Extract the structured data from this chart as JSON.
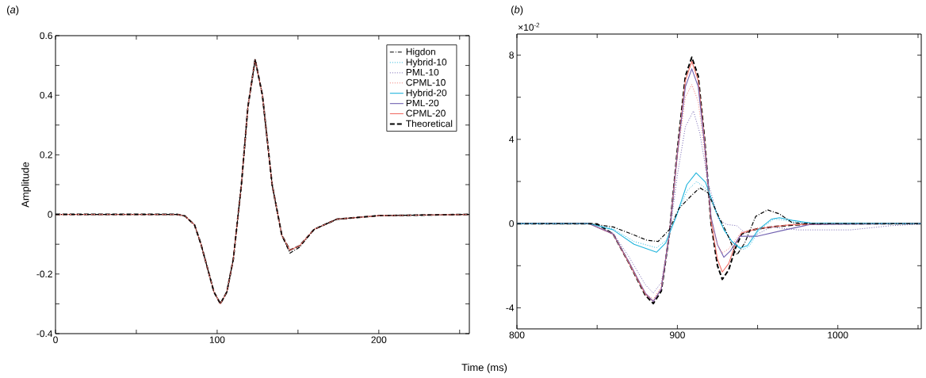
{
  "chart_data": [
    {
      "type": "line",
      "title": "(*a*)",
      "xlabel": "Time (ms)",
      "ylabel": "Amplitude",
      "legend": "top right",
      "xlim": [
        0,
        256
      ],
      "ylim": [
        -0.4,
        0.6
      ],
      "xticks": [
        0,
        {
          "value": 50,
          "label": null
        },
        100,
        {
          "value": 150,
          "label": null
        },
        200,
        {
          "value": 250,
          "label": null
        }
      ],
      "yticks": [
        -0.4,
        {
          "value": -0.3,
          "label": null
        },
        -0.2,
        {
          "value": -0.1,
          "label": null
        },
        0,
        {
          "value": 0.1,
          "label": null
        },
        0.2,
        {
          "value": 0.3,
          "label": null
        },
        0.4,
        {
          "value": 0.5,
          "label": null
        },
        0.6
      ],
      "x": [
        0,
        60,
        75,
        80,
        86,
        90,
        94,
        98,
        102,
        106,
        110,
        115,
        119,
        123.5,
        128,
        134,
        140,
        145,
        151,
        160,
        174,
        200,
        256
      ],
      "series": [
        {
          "name": "Higdon",
          "color": "#000000",
          "line_style": "dashdot",
          "values": [
            0,
            0,
            0,
            -0.005,
            -0.035,
            -0.1,
            -0.18,
            -0.26,
            -0.3,
            -0.26,
            -0.15,
            0.1,
            0.36,
            0.52,
            0.4,
            0.1,
            -0.07,
            -0.13,
            -0.11,
            -0.05,
            -0.016,
            -0.004,
            0
          ]
        },
        {
          "name": "Hybrid-10",
          "color": "#1fb4dc",
          "line_style": "dotted",
          "values": [
            null,
            null,
            null,
            null,
            null,
            null,
            null,
            null,
            null,
            null,
            null,
            null,
            null,
            null,
            null,
            null,
            null,
            null,
            null,
            null,
            null,
            null,
            null
          ]
        },
        {
          "name": "PML-10",
          "color": "#7060b0",
          "line_style": "dotted",
          "values": [
            null,
            null,
            null,
            null,
            null,
            null,
            null,
            null,
            null,
            null,
            null,
            null,
            null,
            null,
            null,
            null,
            null,
            null,
            null,
            null,
            null,
            null,
            null
          ]
        },
        {
          "name": "CPML-10",
          "color": "#f07068",
          "line_style": "dotted",
          "values": [
            null,
            null,
            null,
            null,
            null,
            null,
            null,
            null,
            null,
            null,
            null,
            null,
            null,
            null,
            null,
            null,
            null,
            null,
            null,
            null,
            null,
            null,
            null
          ]
        },
        {
          "name": "Hybrid-20",
          "color": "#1fb4dc",
          "line_style": "solid",
          "values": [
            null,
            null,
            null,
            null,
            null,
            null,
            null,
            null,
            null,
            null,
            null,
            null,
            null,
            null,
            null,
            null,
            null,
            null,
            null,
            null,
            null,
            null,
            null
          ]
        },
        {
          "name": "PML-20",
          "color": "#7060b0",
          "line_style": "solid",
          "values": [
            null,
            null,
            null,
            null,
            null,
            null,
            null,
            null,
            null,
            null,
            null,
            null,
            null,
            null,
            null,
            null,
            null,
            null,
            null,
            null,
            null,
            null,
            null
          ]
        },
        {
          "name": "CPML-20",
          "color": "#f07068",
          "line_style": "solid",
          "values": [
            0,
            0,
            0,
            -0.005,
            -0.035,
            -0.1,
            -0.18,
            -0.26,
            -0.3,
            -0.26,
            -0.15,
            0.1,
            0.36,
            0.52,
            0.4,
            0.1,
            -0.07,
            -0.12,
            -0.105,
            -0.05,
            -0.016,
            -0.004,
            0
          ]
        },
        {
          "name": "Theoretical",
          "color": "#000000",
          "line_style": "dashed",
          "values": [
            0,
            0,
            0,
            -0.005,
            -0.035,
            -0.1,
            -0.18,
            -0.26,
            -0.3,
            -0.26,
            -0.15,
            0.1,
            0.36,
            0.52,
            0.4,
            0.1,
            -0.07,
            -0.12,
            -0.105,
            -0.05,
            -0.016,
            -0.004,
            0
          ]
        }
      ]
    },
    {
      "type": "line",
      "title": "(*b*)",
      "annotations": [
        "×10$^{-2}$"
      ],
      "xlim": [
        800,
        1052
      ],
      "ylim": [
        -5,
        9
      ],
      "xticks": [
        800,
        {
          "value": 850,
          "label": null
        },
        900,
        {
          "value": 950,
          "label": null
        },
        1000,
        {
          "value": 1050,
          "label": null
        }
      ],
      "yticks": [
        -4,
        {
          "value": -2,
          "label": null
        },
        0,
        {
          "value": 2,
          "label": null
        },
        4,
        {
          "value": 6,
          "label": null
        },
        8
      ],
      "series": [
        {
          "color": "#000000",
          "line_style": "dashdot",
          "x": [
            800,
            845,
            860,
            873,
            881,
            888,
            895,
            901,
            909,
            914,
            919,
            925.7,
            930.6,
            935.6,
            937.2,
            942,
            948.8,
            956.2,
            963.6,
            971.8,
            985,
            1052
          ],
          "values": [
            0,
            0,
            -0.16,
            -0.54,
            -0.79,
            -0.85,
            -0.29,
            0.72,
            1.35,
            1.7,
            1.47,
            0.34,
            -0.41,
            -1.3,
            -1.48,
            -0.92,
            0.34,
            0.65,
            0.46,
            0.03,
            0,
            0
          ]
        },
        {
          "color": "#1fb4dc",
          "line_style": "dotted",
          "x": [
            800,
            845,
            860,
            873,
            887,
            893,
            899,
            906,
            912,
            918,
            924,
            929,
            934,
            941.4,
            945,
            951,
            960,
            965,
            972,
            985,
            1052
          ],
          "values": [
            0,
            0,
            -0.25,
            -0.85,
            -1.15,
            -0.8,
            0.3,
            1.55,
            2.0,
            1.65,
            0.55,
            -0.3,
            -0.85,
            -1.23,
            -1.05,
            -0.3,
            0.21,
            0.18,
            0.08,
            0.01,
            0
          ]
        },
        {
          "color": "#7060b0",
          "line_style": "dotted",
          "x": [
            800,
            845,
            860,
            870,
            880,
            885,
            890,
            895,
            900,
            905,
            910,
            914,
            919,
            925.7,
            930.6,
            937,
            945.5,
            958.6,
            975,
            1008,
            1033,
            1052
          ],
          "values": [
            0,
            0,
            -0.45,
            -1.6,
            -2.9,
            -3.3,
            -2.8,
            -0.6,
            2.3,
            4.6,
            5.35,
            4.3,
            2.0,
            0.2,
            -0.04,
            -0.1,
            -0.67,
            -0.16,
            -0.3,
            -0.3,
            -0.1,
            -0.02
          ]
        },
        {
          "color": "#f07068",
          "line_style": "dotted",
          "x": [
            800,
            845,
            860,
            870,
            880,
            885,
            890,
            895,
            900,
            905,
            909,
            913,
            917,
            921,
            925,
            928,
            932,
            936,
            940,
            950,
            970,
            1000,
            1052
          ],
          "values": [
            0,
            0,
            -0.5,
            -1.85,
            -3.3,
            -3.6,
            -3.0,
            -0.5,
            3.2,
            6.0,
            6.6,
            5.8,
            3.4,
            0.2,
            -1.0,
            -1.4,
            -1.2,
            -0.8,
            -0.4,
            -0.2,
            -0.05,
            0,
            0
          ]
        },
        {
          "color": "#1fb4dc",
          "line_style": "solid",
          "x": [
            800,
            845,
            859.8,
            873,
            887,
            892.7,
            899.3,
            905.9,
            911.7,
            917.5,
            924,
            929,
            934,
            938.9,
            943.8,
            950.4,
            958.6,
            963.6,
            971.8,
            983,
            1052
          ],
          "values": [
            0,
            0,
            -0.29,
            -0.98,
            -1.36,
            -0.92,
            0.34,
            1.85,
            2.41,
            1.97,
            0.6,
            -0.29,
            -0.85,
            -1.17,
            -1.04,
            -0.29,
            0.21,
            0.28,
            0.15,
            0.03,
            0
          ]
        },
        {
          "color": "#7060b0",
          "line_style": "solid",
          "x": [
            800,
            845,
            860,
            870,
            880,
            885,
            890,
            895,
            900,
            905,
            909,
            913,
            917,
            921,
            925,
            929,
            933,
            939,
            950,
            967,
            983,
            1052
          ],
          "values": [
            0,
            0,
            -0.5,
            -1.85,
            -3.3,
            -3.7,
            -3.1,
            -0.5,
            3.3,
            6.5,
            7.35,
            6.5,
            3.7,
            0.3,
            -1.0,
            -1.6,
            -1.3,
            -0.6,
            -0.6,
            -0.3,
            -0.04,
            0
          ]
        },
        {
          "color": "#f07068",
          "line_style": "solid",
          "x": [
            800,
            845,
            860,
            870,
            880,
            885,
            890,
            895,
            900,
            905,
            909,
            913,
            917,
            921,
            925,
            928,
            932,
            936,
            940,
            950,
            970,
            1000,
            1052
          ],
          "values": [
            0,
            0,
            -0.5,
            -1.9,
            -3.35,
            -3.7,
            -3.1,
            -0.5,
            3.4,
            6.8,
            7.7,
            6.8,
            3.9,
            0.1,
            -1.7,
            -2.3,
            -1.9,
            -1.0,
            -0.45,
            -0.25,
            -0.06,
            0,
            0
          ]
        },
        {
          "color": "#000000",
          "line_style": "dashed",
          "x": [
            800,
            840,
            850,
            860,
            870,
            880,
            885,
            890,
            895,
            900,
            905,
            909,
            913,
            917,
            921,
            925,
            928,
            932,
            936,
            940,
            945,
            950,
            960,
            970,
            980,
            1000,
            1052
          ],
          "values": [
            0,
            0,
            -0.02,
            -0.5,
            -1.9,
            -3.4,
            -3.8,
            -3.2,
            -0.5,
            3.5,
            7.0,
            7.9,
            7.0,
            4.0,
            0,
            -2.0,
            -2.65,
            -2.2,
            -1.2,
            -0.5,
            -0.35,
            -0.25,
            -0.15,
            -0.08,
            -0.03,
            0,
            0
          ]
        }
      ]
    }
  ]
}
